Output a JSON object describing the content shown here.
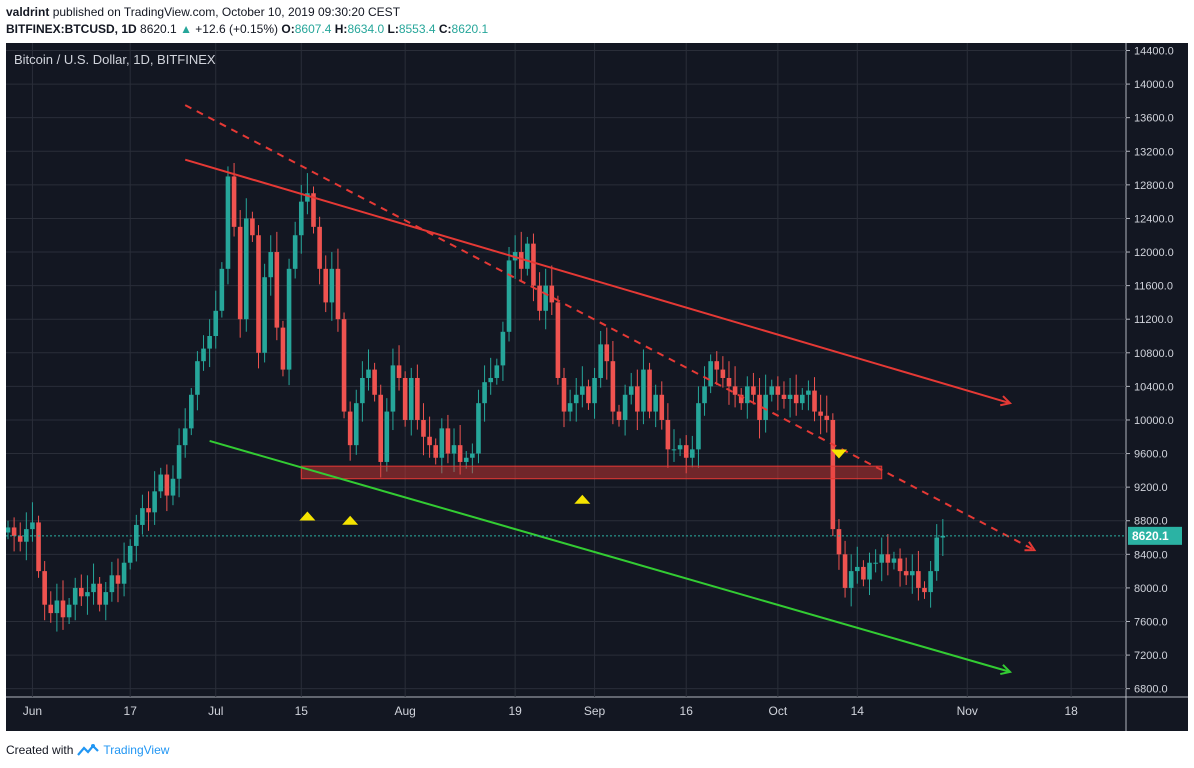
{
  "header": {
    "user": "valdrint",
    "published_text": "published on TradingView.com, October 10, 2019 09:30:20 CEST",
    "symbol": "BITFINEX:BTCUSD, 1D",
    "last": "8620.1",
    "change_arrow": "▲",
    "change": "+12.6 (+0.15%)",
    "o_label": "O:",
    "o_value": "8607.4",
    "h_label": "H:",
    "h_value": "8634.0",
    "l_label": "L:",
    "l_value": "8553.4",
    "c_label": "C:",
    "c_value": "8620.1"
  },
  "footer": {
    "created_with": "Created with",
    "brand": "TradingView",
    "logo_icon": "tradingview-logo-icon"
  },
  "colors": {
    "background": "#131722",
    "up": "#26a69a",
    "down": "#ef5350",
    "resistance": "#e53935",
    "support": "#33cc33",
    "marker": "#f5e400",
    "price_line": "#2bb3a4"
  },
  "chart_data": {
    "type": "candlestick",
    "title": "Bitcoin / U.S. Dollar, 1D, BITFINEX",
    "x_tick_labels": [
      "Jun",
      "17",
      "Jul",
      "15",
      "Aug",
      "19",
      "Sep",
      "16",
      "Oct",
      "14",
      "Nov",
      "18"
    ],
    "x_tick_dates": [
      "2019-06-01",
      "2019-06-17",
      "2019-07-01",
      "2019-07-15",
      "2019-08-01",
      "2019-08-19",
      "2019-09-01",
      "2019-09-16",
      "2019-10-01",
      "2019-10-14",
      "2019-11-01",
      "2019-11-18"
    ],
    "ylim": [
      6400,
      14600
    ],
    "y_ticks": [
      6800,
      7200,
      7600,
      8000,
      8400,
      8800,
      9200,
      9600,
      10000,
      10400,
      10800,
      11200,
      11600,
      12000,
      12400,
      12800,
      13200,
      13600,
      14000,
      14400
    ],
    "y_tick_labels": [
      "6800.0",
      "7200.0",
      "7600.0",
      "8000.0",
      "8400.0",
      "8800.0",
      "9200.0",
      "9600.0",
      "10000.0",
      "10400.0",
      "10800.0",
      "11200.0",
      "11600.0",
      "12000.0",
      "12400.0",
      "12800.0",
      "13200.0",
      "13600.0",
      "14000.0",
      "14400.0"
    ],
    "last_price": 8620.1,
    "last_price_label": "8620.1",
    "first_date": "2019-05-28",
    "closes": [
      8720,
      8620,
      8550,
      8700,
      8780,
      8200,
      7800,
      7700,
      7850,
      7650,
      7800,
      8000,
      7900,
      7950,
      8050,
      7800,
      7950,
      8150,
      8050,
      8300,
      8500,
      8750,
      8950,
      8900,
      9150,
      9350,
      9100,
      9300,
      9700,
      9900,
      10300,
      10700,
      10850,
      11000,
      11300,
      11800,
      12900,
      12300,
      11200,
      12400,
      12200,
      10800,
      11700,
      12000,
      11100,
      10600,
      11800,
      12200,
      12600,
      12700,
      12300,
      11800,
      11400,
      11800,
      11200,
      10100,
      9700,
      10200,
      10500,
      10600,
      10300,
      9500,
      10100,
      10650,
      10500,
      10000,
      10500,
      10000,
      9800,
      9700,
      9550,
      9900,
      9600,
      9700,
      9500,
      9550,
      9600,
      10200,
      10450,
      10500,
      10650,
      11050,
      11900,
      12000,
      11800,
      12100,
      11600,
      11300,
      11600,
      11400,
      10500,
      10100,
      10200,
      10300,
      10400,
      10200,
      10500,
      10900,
      10700,
      10100,
      10000,
      10300,
      10400,
      10100,
      10600,
      10100,
      10300,
      10000,
      9650,
      9650,
      9700,
      9550,
      9650,
      10200,
      10400,
      10700,
      10600,
      10500,
      10400,
      10300,
      10200,
      10400,
      10300,
      10000,
      10300,
      10400,
      10300,
      10250,
      10300,
      10200,
      10300,
      10350,
      10100,
      10050,
      10000,
      8700,
      8400,
      8000,
      8200,
      8250,
      8100,
      8300,
      8300,
      8400,
      8300,
      8350,
      8200,
      8150,
      8200,
      8000,
      7950,
      8200,
      8600,
      8620.1
    ],
    "annotations": {
      "resistance_line": {
        "from": [
          "2019-06-26",
          13100
        ],
        "to": [
          "2019-11-08",
          10200
        ]
      },
      "dashed_line": {
        "from": [
          "2019-06-26",
          13750
        ],
        "to": [
          "2019-11-12",
          8450
        ]
      },
      "support_line": {
        "from": [
          "2019-06-30",
          9750
        ],
        "to": [
          "2019-11-08",
          7000
        ]
      },
      "horizontal_zone": {
        "from": "2019-07-15",
        "to": "2019-10-18",
        "low": 9300,
        "high": 9450
      },
      "markers": [
        {
          "date": "2019-07-16",
          "price": 8850,
          "direction": "up"
        },
        {
          "date": "2019-07-23",
          "price": 8800,
          "direction": "up"
        },
        {
          "date": "2019-08-30",
          "price": 9050,
          "direction": "up"
        },
        {
          "date": "2019-10-11",
          "price": 9600,
          "direction": "down"
        }
      ]
    }
  }
}
